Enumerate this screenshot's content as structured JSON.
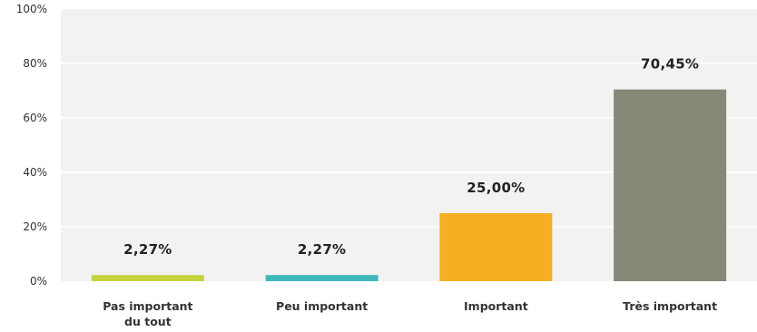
{
  "chart_data": {
    "type": "bar",
    "categories": [
      [
        "Pas important",
        "du tout"
      ],
      [
        "Peu important"
      ],
      [
        "Important"
      ],
      [
        "Très important"
      ]
    ],
    "values": [
      2.27,
      2.27,
      25.0,
      70.45
    ],
    "data_labels": [
      "2,27%",
      "2,27%",
      "25,00%",
      "70,45%"
    ],
    "colors": [
      "#c6d33c",
      "#3eb8bd",
      "#f6ae23",
      "#868878"
    ],
    "ylim": [
      0,
      100
    ],
    "y_ticks": [
      0,
      20,
      40,
      60,
      80,
      100
    ],
    "y_tick_labels": [
      "0%",
      "20%",
      "40%",
      "60%",
      "80%",
      "100%"
    ],
    "title": "",
    "xlabel": "",
    "ylabel": "",
    "grid": true,
    "legend": "none",
    "plot_background": "#f2f2f2",
    "grid_color": "#ffffff"
  }
}
